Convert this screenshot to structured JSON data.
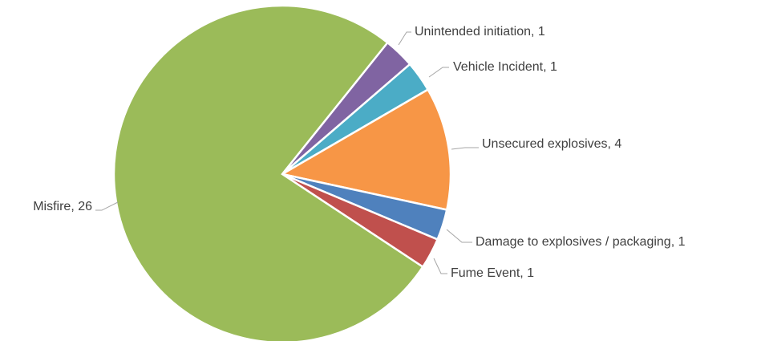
{
  "chart_data": {
    "type": "pie",
    "categories": [
      "Unintended initiation",
      "Vehicle Incident",
      "Unsecured explosives",
      "Damage to explosives / packaging",
      "Fume Event",
      "Misfire"
    ],
    "values": [
      1,
      1,
      4,
      1,
      1,
      26
    ],
    "value_labels": [
      "Unintended initiation, 1",
      "Vehicle Incident, 1",
      "Unsecured explosives, 4",
      "Damage to explosives / packaging, 1",
      "Fume Event, 1",
      "Misfire, 26"
    ],
    "colors": [
      "#8064a2",
      "#4bacc6",
      "#f79646",
      "#4f81bd",
      "#c0504d",
      "#9bbb59"
    ]
  }
}
